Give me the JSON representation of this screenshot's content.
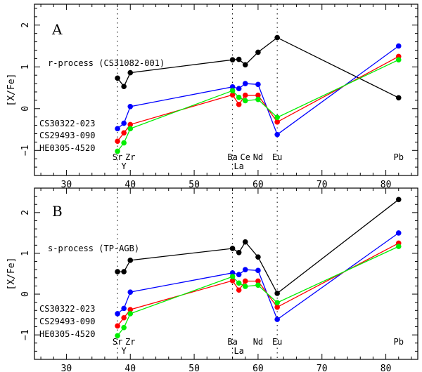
{
  "chart_data": [
    {
      "type": "line",
      "panel_label": "A",
      "ylabel": "[X/Fe]",
      "xlim": [
        25,
        85
      ],
      "ylim": [
        -1.6,
        2.5
      ],
      "xticks": [
        30,
        40,
        50,
        60,
        70,
        80
      ],
      "yticks": [
        -1,
        0,
        1,
        2
      ],
      "xticklabels": [
        "30",
        "40",
        "50",
        "60",
        "70",
        "80"
      ],
      "yticklabels": [
        "−1",
        "0",
        "1",
        "2"
      ],
      "vlines": [
        38,
        56,
        63
      ],
      "series": [
        {
          "name": "r-process  (CS31082-001)",
          "color": "#000000",
          "x": [
            38,
            39,
            40,
            56,
            57,
            58,
            60,
            63,
            82
          ],
          "y": [
            0.73,
            0.53,
            0.86,
            1.17,
            1.18,
            1.05,
            1.35,
            1.7,
            0.26
          ]
        },
        {
          "name": "CS30322-023",
          "color": "#0000ff",
          "x": [
            38,
            39,
            40,
            56,
            57,
            58,
            60,
            63,
            82
          ],
          "y": [
            -0.48,
            -0.35,
            0.05,
            0.52,
            0.48,
            0.6,
            0.58,
            -0.62,
            1.5
          ]
        },
        {
          "name": "CS29493-090",
          "color": "#ff0000",
          "x": [
            38,
            39,
            40,
            56,
            57,
            58,
            60,
            63,
            82
          ],
          "y": [
            -0.78,
            -0.58,
            -0.38,
            0.33,
            0.1,
            0.32,
            0.32,
            -0.32,
            1.25
          ]
        },
        {
          "name": "HE0305-4520",
          "color": "#00ee00",
          "x": [
            38,
            39,
            40,
            56,
            57,
            58,
            60,
            63,
            82
          ],
          "y": [
            -1.02,
            -0.82,
            -0.48,
            0.43,
            0.27,
            0.19,
            0.22,
            -0.21,
            1.17
          ]
        }
      ],
      "element_labels_top": [
        {
          "text": "Sr",
          "x": 38
        },
        {
          "text": "Zr",
          "x": 40
        },
        {
          "text": "Ba",
          "x": 56
        },
        {
          "text": "Ce",
          "x": 58
        },
        {
          "text": "Nd",
          "x": 60
        },
        {
          "text": "Eu",
          "x": 63
        },
        {
          "text": "Pb",
          "x": 82
        }
      ],
      "element_labels_bottom": [
        {
          "text": "Y",
          "x": 39
        },
        {
          "text": "La",
          "x": 57
        }
      ]
    },
    {
      "type": "line",
      "panel_label": "B",
      "ylabel": "[X/Fe]",
      "xlim": [
        25,
        85
      ],
      "ylim": [
        -1.6,
        2.6
      ],
      "xticks": [
        30,
        40,
        50,
        60,
        70,
        80
      ],
      "yticks": [
        -1,
        0,
        1,
        2
      ],
      "xticklabels": [
        "30",
        "40",
        "50",
        "60",
        "70",
        "80"
      ],
      "yticklabels": [
        "−1",
        "0",
        "1",
        "2"
      ],
      "vlines": [
        38,
        56,
        63
      ],
      "series": [
        {
          "name": "s-process  (TP-AGB)",
          "color": "#000000",
          "x": [
            38,
            39,
            40,
            56,
            57,
            58,
            60,
            63,
            82
          ],
          "y": [
            0.55,
            0.55,
            0.83,
            1.12,
            1.02,
            1.28,
            0.91,
            0.02,
            2.32
          ]
        },
        {
          "name": "CS30322-023",
          "color": "#0000ff",
          "x": [
            38,
            39,
            40,
            56,
            57,
            58,
            60,
            63,
            82
          ],
          "y": [
            -0.48,
            -0.35,
            0.05,
            0.52,
            0.48,
            0.6,
            0.58,
            -0.62,
            1.5
          ]
        },
        {
          "name": "CS29493-090",
          "color": "#ff0000",
          "x": [
            38,
            39,
            40,
            56,
            57,
            58,
            60,
            63,
            82
          ],
          "y": [
            -0.78,
            -0.58,
            -0.38,
            0.33,
            0.1,
            0.32,
            0.32,
            -0.32,
            1.25
          ]
        },
        {
          "name": "HE0305-4520",
          "color": "#00ee00",
          "x": [
            38,
            39,
            40,
            56,
            57,
            58,
            60,
            63,
            82
          ],
          "y": [
            -1.02,
            -0.82,
            -0.48,
            0.43,
            0.27,
            0.19,
            0.22,
            -0.21,
            1.17
          ]
        }
      ],
      "element_labels_top": [
        {
          "text": "Sr",
          "x": 38
        },
        {
          "text": "Zr",
          "x": 40
        },
        {
          "text": "Ba",
          "x": 56
        },
        {
          "text": "Nd",
          "x": 60
        },
        {
          "text": "Eu",
          "x": 63
        },
        {
          "text": "Pb",
          "x": 82
        }
      ],
      "element_labels_bottom": [
        {
          "text": "Y",
          "x": 39
        },
        {
          "text": "La",
          "x": 57
        }
      ]
    }
  ]
}
